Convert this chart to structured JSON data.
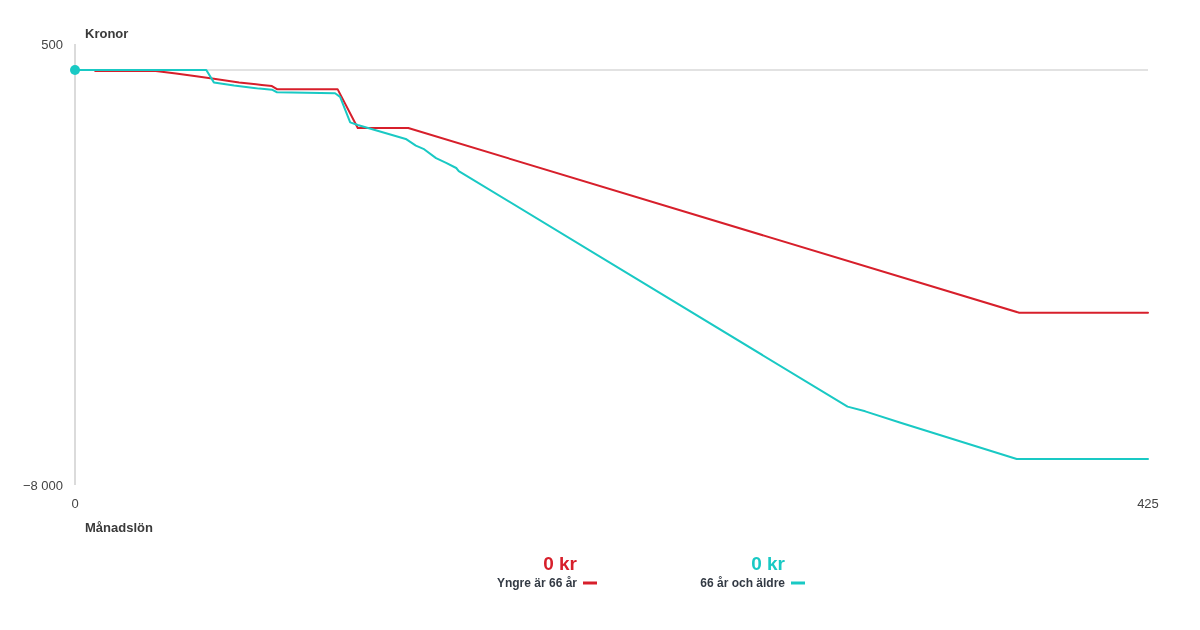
{
  "chart_data": {
    "type": "line",
    "xlabel": "Månadslön",
    "ylabel": "Kronor",
    "xlim": [
      0,
      425
    ],
    "xticks": [
      0,
      425
    ],
    "ylim": [
      -8000,
      500
    ],
    "yticks": [
      500,
      {
        "value": -8000,
        "label": "−8 000"
      }
    ],
    "ref_lines": [
      {
        "axis": "y",
        "value": 0,
        "color": "#d9d9d9"
      }
    ],
    "legend": "bottom",
    "annotations": [
      "0 kr",
      "0 kr"
    ],
    "series": [
      {
        "name": "Yngre är 66 år",
        "color": "#d71f2b",
        "x": [
          8,
          32,
          40,
          48,
          55,
          65,
          74,
          78,
          80,
          104,
          112,
          132,
          374,
          425
        ],
        "values": [
          -20,
          -20,
          -70,
          -120,
          -170,
          -240,
          -290,
          -310,
          -370,
          -370,
          -1120,
          -1120,
          -4680,
          -4680
        ]
      },
      {
        "name": "66 år och äldre",
        "color": "#19c9c4",
        "x": [
          0,
          52,
          55,
          63,
          73,
          78,
          80,
          103,
          105,
          109,
          112,
          131,
          135,
          138,
          143,
          147,
          151,
          152,
          306,
          313,
          327,
          373,
          425
        ],
        "values": [
          0,
          0,
          -240,
          -300,
          -360,
          -380,
          -430,
          -450,
          -520,
          -1010,
          -1060,
          -1330,
          -1460,
          -1520,
          -1700,
          -1790,
          -1890,
          -1950,
          -6490,
          -6580,
          -6800,
          -7500,
          -7500
        ]
      },
      {
        "type": "scatter",
        "color": "#19c9c4",
        "x": [
          0
        ],
        "values": [
          0
        ],
        "marker": "circle"
      }
    ]
  }
}
